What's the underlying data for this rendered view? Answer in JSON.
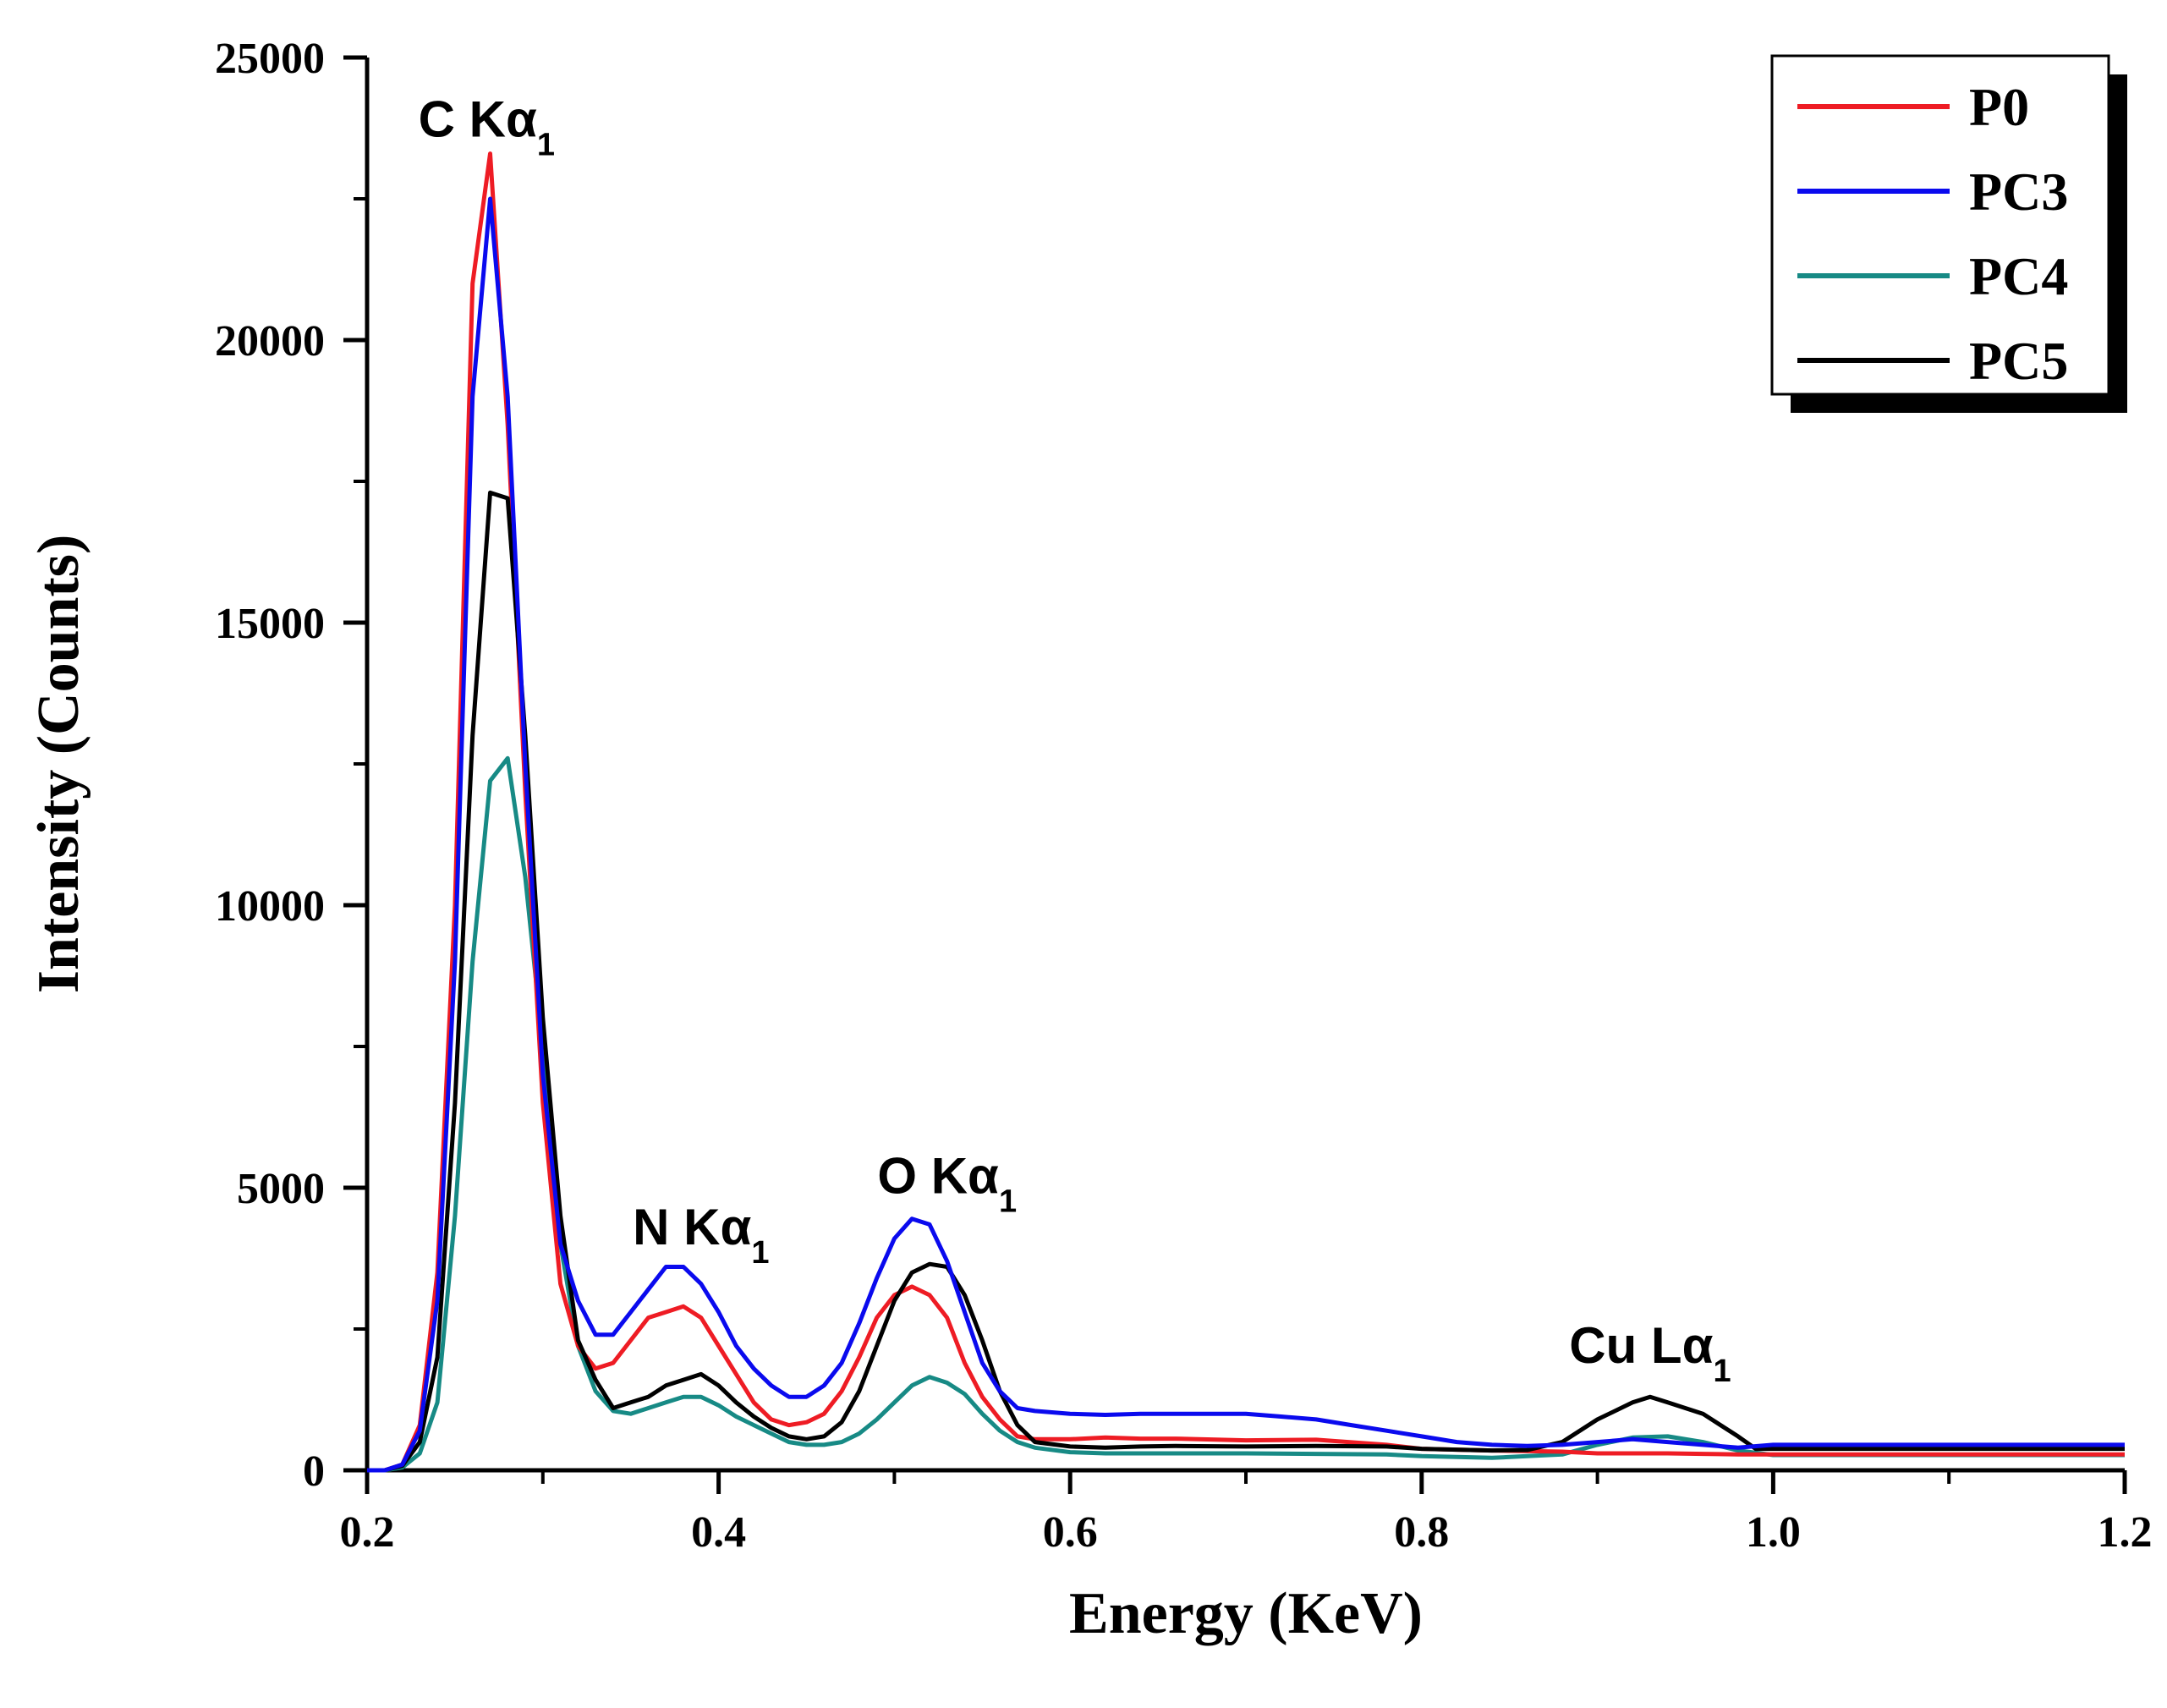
{
  "chart_data": {
    "type": "line",
    "title": "",
    "xlabel": "Energy (KeV)",
    "ylabel": "Intensity (Counts)",
    "xlim": [
      0.2,
      1.2
    ],
    "ylim": [
      0,
      25000
    ],
    "xticks": [
      "0.2",
      "0.4",
      "0.6",
      "0.8",
      "1.0",
      "1.2"
    ],
    "yticks": [
      "0",
      "5000",
      "10000",
      "15000",
      "20000",
      "25000"
    ],
    "legend_position": "top-right",
    "annotations": [
      {
        "main": "C Kα",
        "sub": "1",
        "x": 0.268,
        "y": 23600
      },
      {
        "main": "N Kα",
        "sub": "1",
        "x": 0.39,
        "y": 4000
      },
      {
        "main": "O Kα",
        "sub": "1",
        "x": 0.53,
        "y": 4900
      },
      {
        "main": "Cu Lα",
        "sub": "1",
        "x": 0.93,
        "y": 1900
      }
    ],
    "series": [
      {
        "name": "P0",
        "color": "#ee1c24",
        "points": [
          [
            0.2,
            0
          ],
          [
            0.21,
            0
          ],
          [
            0.22,
            100
          ],
          [
            0.23,
            800
          ],
          [
            0.24,
            3500
          ],
          [
            0.25,
            10000
          ],
          [
            0.26,
            21000
          ],
          [
            0.27,
            23300
          ],
          [
            0.28,
            18500
          ],
          [
            0.29,
            12000
          ],
          [
            0.3,
            6500
          ],
          [
            0.31,
            3300
          ],
          [
            0.32,
            2200
          ],
          [
            0.33,
            1800
          ],
          [
            0.34,
            1900
          ],
          [
            0.35,
            2300
          ],
          [
            0.36,
            2700
          ],
          [
            0.37,
            2800
          ],
          [
            0.38,
            2900
          ],
          [
            0.39,
            2700
          ],
          [
            0.4,
            2200
          ],
          [
            0.41,
            1700
          ],
          [
            0.42,
            1200
          ],
          [
            0.43,
            900
          ],
          [
            0.44,
            800
          ],
          [
            0.45,
            850
          ],
          [
            0.46,
            1000
          ],
          [
            0.47,
            1400
          ],
          [
            0.48,
            2000
          ],
          [
            0.49,
            2700
          ],
          [
            0.5,
            3100
          ],
          [
            0.51,
            3250
          ],
          [
            0.52,
            3100
          ],
          [
            0.53,
            2700
          ],
          [
            0.54,
            1900
          ],
          [
            0.55,
            1300
          ],
          [
            0.56,
            900
          ],
          [
            0.57,
            600
          ],
          [
            0.58,
            550
          ],
          [
            0.6,
            550
          ],
          [
            0.62,
            580
          ],
          [
            0.64,
            560
          ],
          [
            0.66,
            560
          ],
          [
            0.7,
            530
          ],
          [
            0.74,
            540
          ],
          [
            0.78,
            450
          ],
          [
            0.8,
            380
          ],
          [
            0.84,
            350
          ],
          [
            0.88,
            330
          ],
          [
            0.9,
            300
          ],
          [
            0.92,
            300
          ],
          [
            0.94,
            300
          ],
          [
            0.96,
            290
          ],
          [
            0.98,
            280
          ],
          [
            1.0,
            280
          ],
          [
            1.2,
            280
          ]
        ]
      },
      {
        "name": "PC3",
        "color": "#0a0aee",
        "points": [
          [
            0.2,
            0
          ],
          [
            0.21,
            0
          ],
          [
            0.22,
            100
          ],
          [
            0.23,
            700
          ],
          [
            0.24,
            3000
          ],
          [
            0.25,
            9000
          ],
          [
            0.26,
            19000
          ],
          [
            0.27,
            22500
          ],
          [
            0.28,
            19000
          ],
          [
            0.29,
            12500
          ],
          [
            0.3,
            7000
          ],
          [
            0.31,
            4000
          ],
          [
            0.32,
            3000
          ],
          [
            0.33,
            2400
          ],
          [
            0.34,
            2400
          ],
          [
            0.35,
            2800
          ],
          [
            0.36,
            3200
          ],
          [
            0.37,
            3600
          ],
          [
            0.38,
            3600
          ],
          [
            0.39,
            3300
          ],
          [
            0.4,
            2800
          ],
          [
            0.41,
            2200
          ],
          [
            0.42,
            1800
          ],
          [
            0.43,
            1500
          ],
          [
            0.44,
            1300
          ],
          [
            0.45,
            1300
          ],
          [
            0.46,
            1500
          ],
          [
            0.47,
            1900
          ],
          [
            0.48,
            2600
          ],
          [
            0.49,
            3400
          ],
          [
            0.5,
            4100
          ],
          [
            0.51,
            4450
          ],
          [
            0.52,
            4350
          ],
          [
            0.53,
            3700
          ],
          [
            0.54,
            2800
          ],
          [
            0.55,
            1900
          ],
          [
            0.56,
            1400
          ],
          [
            0.57,
            1100
          ],
          [
            0.58,
            1050
          ],
          [
            0.6,
            1000
          ],
          [
            0.62,
            980
          ],
          [
            0.64,
            1000
          ],
          [
            0.66,
            1000
          ],
          [
            0.68,
            1000
          ],
          [
            0.7,
            1000
          ],
          [
            0.72,
            950
          ],
          [
            0.74,
            900
          ],
          [
            0.76,
            800
          ],
          [
            0.78,
            700
          ],
          [
            0.8,
            600
          ],
          [
            0.82,
            500
          ],
          [
            0.84,
            450
          ],
          [
            0.86,
            430
          ],
          [
            0.88,
            450
          ],
          [
            0.9,
            500
          ],
          [
            0.92,
            550
          ],
          [
            0.94,
            500
          ],
          [
            0.96,
            450
          ],
          [
            0.98,
            400
          ],
          [
            1.0,
            450
          ],
          [
            1.2,
            450
          ]
        ]
      },
      {
        "name": "PC4",
        "color": "#178a85",
        "points": [
          [
            0.2,
            0
          ],
          [
            0.21,
            0
          ],
          [
            0.22,
            50
          ],
          [
            0.23,
            300
          ],
          [
            0.24,
            1200
          ],
          [
            0.25,
            4500
          ],
          [
            0.26,
            9000
          ],
          [
            0.27,
            12200
          ],
          [
            0.28,
            12600
          ],
          [
            0.29,
            10500
          ],
          [
            0.3,
            7500
          ],
          [
            0.31,
            4000
          ],
          [
            0.32,
            2200
          ],
          [
            0.33,
            1400
          ],
          [
            0.34,
            1050
          ],
          [
            0.35,
            1000
          ],
          [
            0.36,
            1100
          ],
          [
            0.37,
            1200
          ],
          [
            0.38,
            1300
          ],
          [
            0.39,
            1300
          ],
          [
            0.4,
            1150
          ],
          [
            0.41,
            950
          ],
          [
            0.42,
            800
          ],
          [
            0.43,
            650
          ],
          [
            0.44,
            500
          ],
          [
            0.45,
            450
          ],
          [
            0.46,
            450
          ],
          [
            0.47,
            500
          ],
          [
            0.48,
            650
          ],
          [
            0.49,
            900
          ],
          [
            0.5,
            1200
          ],
          [
            0.51,
            1500
          ],
          [
            0.52,
            1650
          ],
          [
            0.53,
            1550
          ],
          [
            0.54,
            1350
          ],
          [
            0.55,
            1000
          ],
          [
            0.56,
            700
          ],
          [
            0.57,
            500
          ],
          [
            0.58,
            400
          ],
          [
            0.6,
            320
          ],
          [
            0.62,
            300
          ],
          [
            0.64,
            300
          ],
          [
            0.66,
            300
          ],
          [
            0.7,
            300
          ],
          [
            0.74,
            290
          ],
          [
            0.78,
            280
          ],
          [
            0.8,
            250
          ],
          [
            0.84,
            220
          ],
          [
            0.86,
            250
          ],
          [
            0.88,
            280
          ],
          [
            0.9,
            450
          ],
          [
            0.92,
            580
          ],
          [
            0.94,
            600
          ],
          [
            0.96,
            500
          ],
          [
            0.98,
            350
          ],
          [
            1.0,
            270
          ],
          [
            1.2,
            270
          ]
        ]
      },
      {
        "name": "PC5",
        "color": "#000000",
        "points": [
          [
            0.2,
            0
          ],
          [
            0.21,
            0
          ],
          [
            0.22,
            80
          ],
          [
            0.23,
            500
          ],
          [
            0.24,
            2000
          ],
          [
            0.25,
            6500
          ],
          [
            0.26,
            13000
          ],
          [
            0.27,
            17300
          ],
          [
            0.28,
            17200
          ],
          [
            0.29,
            13000
          ],
          [
            0.3,
            8000
          ],
          [
            0.31,
            4500
          ],
          [
            0.32,
            2300
          ],
          [
            0.33,
            1600
          ],
          [
            0.34,
            1100
          ],
          [
            0.35,
            1200
          ],
          [
            0.36,
            1300
          ],
          [
            0.37,
            1500
          ],
          [
            0.38,
            1600
          ],
          [
            0.39,
            1700
          ],
          [
            0.4,
            1500
          ],
          [
            0.41,
            1200
          ],
          [
            0.42,
            950
          ],
          [
            0.43,
            750
          ],
          [
            0.44,
            600
          ],
          [
            0.45,
            550
          ],
          [
            0.46,
            600
          ],
          [
            0.47,
            850
          ],
          [
            0.48,
            1400
          ],
          [
            0.49,
            2200
          ],
          [
            0.5,
            3000
          ],
          [
            0.51,
            3500
          ],
          [
            0.52,
            3650
          ],
          [
            0.53,
            3600
          ],
          [
            0.54,
            3100
          ],
          [
            0.55,
            2300
          ],
          [
            0.56,
            1400
          ],
          [
            0.57,
            800
          ],
          [
            0.58,
            500
          ],
          [
            0.6,
            420
          ],
          [
            0.62,
            400
          ],
          [
            0.64,
            420
          ],
          [
            0.66,
            430
          ],
          [
            0.7,
            420
          ],
          [
            0.74,
            430
          ],
          [
            0.78,
            420
          ],
          [
            0.8,
            380
          ],
          [
            0.84,
            350
          ],
          [
            0.86,
            360
          ],
          [
            0.88,
            500
          ],
          [
            0.9,
            900
          ],
          [
            0.92,
            1200
          ],
          [
            0.93,
            1300
          ],
          [
            0.94,
            1200
          ],
          [
            0.96,
            1000
          ],
          [
            0.98,
            600
          ],
          [
            0.99,
            380
          ],
          [
            1.0,
            380
          ],
          [
            1.2,
            380
          ]
        ]
      }
    ]
  }
}
